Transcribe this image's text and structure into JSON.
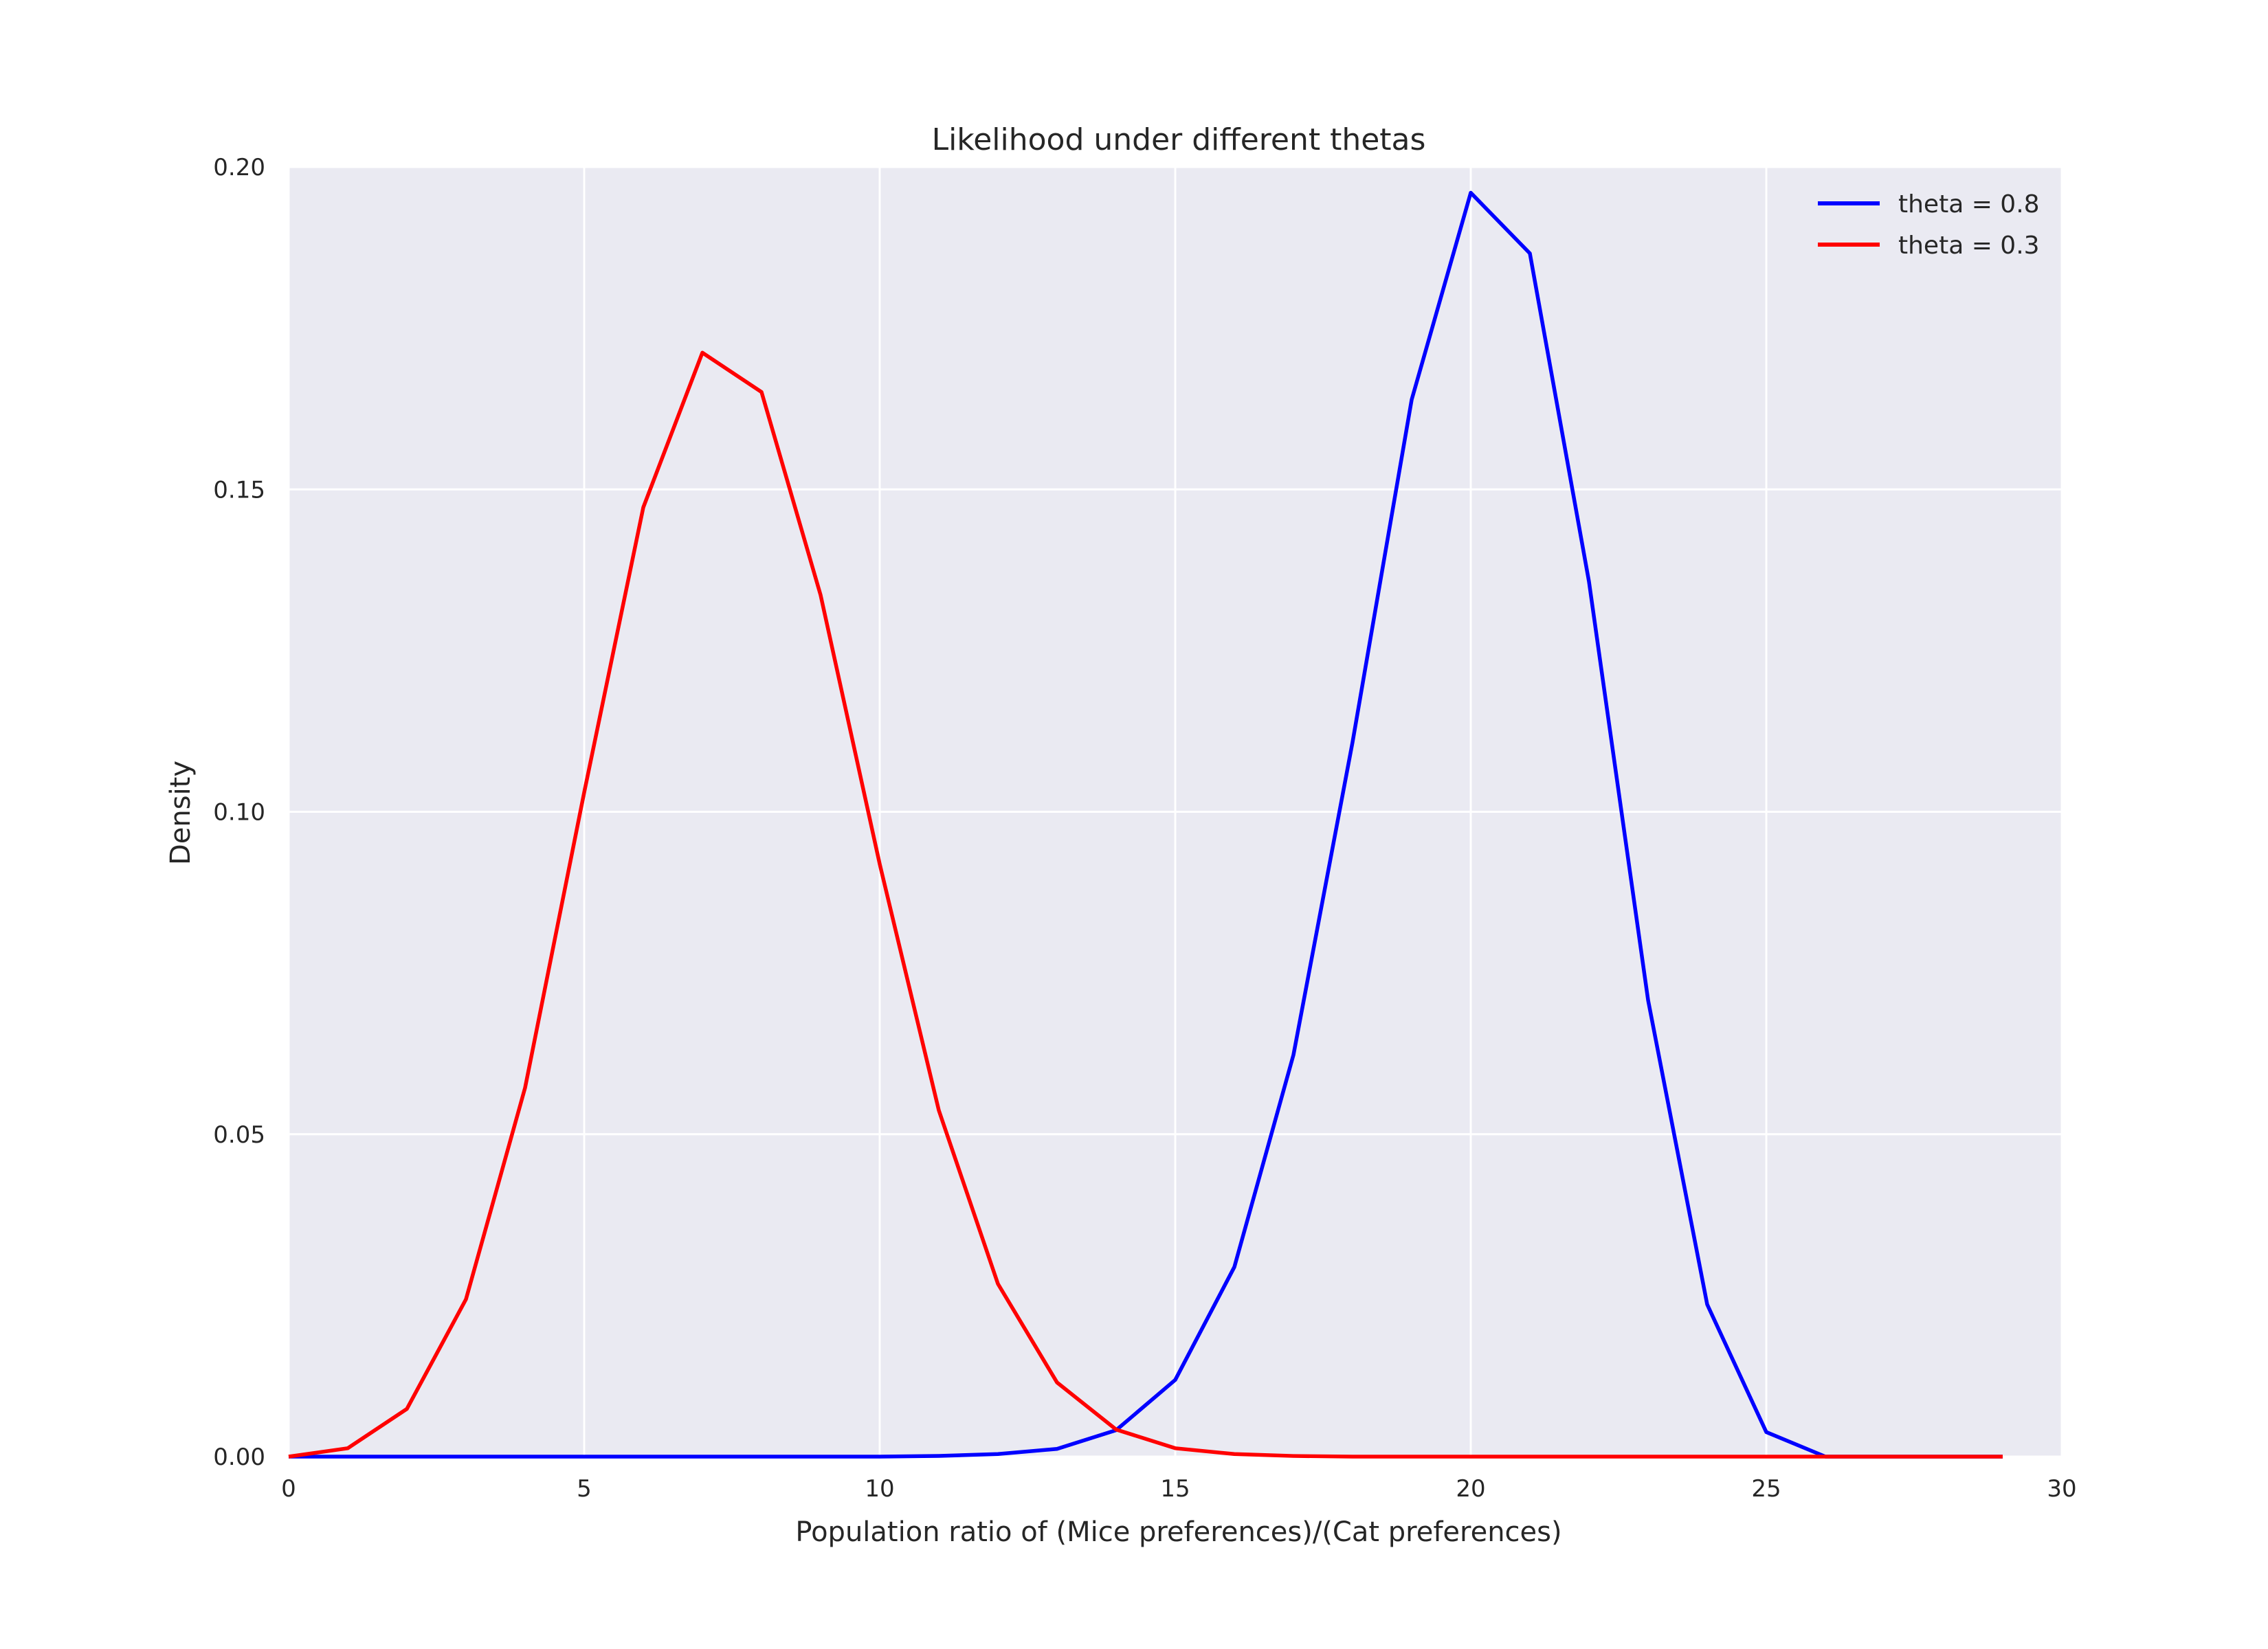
{
  "chart_data": {
    "type": "line",
    "title": "Likelihood under different thetas",
    "xlabel": "Population ratio of (Mice preferences)/(Cat preferences)",
    "ylabel": "Density",
    "xlim": [
      0,
      30
    ],
    "ylim": [
      0,
      0.2
    ],
    "xticks": [
      0,
      5,
      10,
      15,
      20,
      25,
      30
    ],
    "xtick_labels": [
      "0",
      "5",
      "10",
      "15",
      "20",
      "25",
      "30"
    ],
    "yticks": [
      0,
      0.05,
      0.1,
      0.15,
      0.2
    ],
    "ytick_labels": [
      "0.00",
      "0.05",
      "0.10",
      "0.15",
      "0.20"
    ],
    "grid": true,
    "legend_position": "top-right",
    "background": "#eaeaf2",
    "grid_color": "#ffffff",
    "x": [
      0,
      1,
      2,
      3,
      4,
      5,
      6,
      7,
      8,
      9,
      10,
      11,
      12,
      13,
      14,
      15,
      16,
      17,
      18,
      19,
      20,
      21,
      22,
      23,
      24,
      25,
      26,
      27,
      28,
      29
    ],
    "series": [
      {
        "name": "theta = 0.8",
        "color": "#0000ff",
        "values": [
          0,
          0,
          0,
          0,
          0,
          0,
          0,
          0,
          0,
          0,
          0,
          0.0001,
          0.0004,
          0.0012,
          0.0041,
          0.0119,
          0.0294,
          0.0623,
          0.1108,
          0.1639,
          0.196,
          0.1866,
          0.1357,
          0.0708,
          0.0236,
          0.0038,
          0,
          0,
          0,
          0
        ]
      },
      {
        "name": "theta = 0.3",
        "color": "#ff0000",
        "values": [
          0,
          0.0013,
          0.0074,
          0.0244,
          0.0572,
          0.103,
          0.1472,
          0.1712,
          0.1651,
          0.1336,
          0.0919,
          0.0537,
          0.0268,
          0.0115,
          0.0042,
          0.0013,
          0.0004,
          0.0001,
          0,
          0,
          0,
          0,
          0,
          0,
          0,
          0,
          0,
          0,
          0,
          0
        ]
      }
    ]
  }
}
